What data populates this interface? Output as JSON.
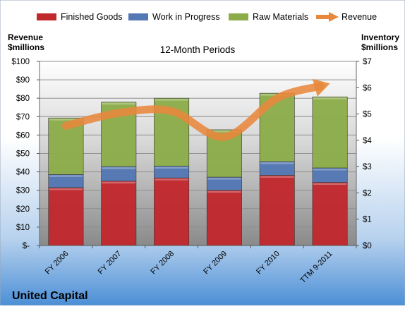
{
  "chart_data": {
    "type": "bar",
    "title": "12-Month Periods",
    "company": "United Capital",
    "left_axis_label": [
      "Revenue",
      "$millions"
    ],
    "right_axis_label": [
      "Inventory",
      "$millions"
    ],
    "categories": [
      "FY 2006",
      "FY 2007",
      "FY 2008",
      "FY 2009",
      "FY 2010",
      "TTM 9-2011"
    ],
    "left_axis": {
      "min": 0,
      "max": 100,
      "step": 10,
      "ticks": [
        "$-",
        "$10",
        "$20",
        "$30",
        "$40",
        "$50",
        "$60",
        "$70",
        "$80",
        "$90",
        "$100"
      ]
    },
    "right_axis": {
      "min": 0,
      "max": 7,
      "step": 1,
      "ticks": [
        "$0",
        "$1",
        "$2",
        "$3",
        "$4",
        "$5",
        "$6",
        "$7"
      ]
    },
    "stacked_bars_inventory": [
      {
        "name": "Finished Goods",
        "color": "#c0282d",
        "values": [
          2.2,
          2.45,
          2.57,
          2.1,
          2.67,
          2.4
        ]
      },
      {
        "name": "Work in Progress",
        "color": "#5478b4",
        "values": [
          0.5,
          0.55,
          0.45,
          0.5,
          0.52,
          0.55
        ]
      },
      {
        "name": "Raw Materials",
        "color": "#8cac4a",
        "values": [
          2.15,
          2.45,
          2.58,
          1.8,
          2.6,
          2.7
        ]
      }
    ],
    "line_series": {
      "name": "Revenue",
      "axis": "left",
      "color": "#e8883c",
      "values": [
        65,
        72,
        73,
        59,
        80,
        88
      ]
    },
    "legend_position": "top",
    "grid": true
  }
}
